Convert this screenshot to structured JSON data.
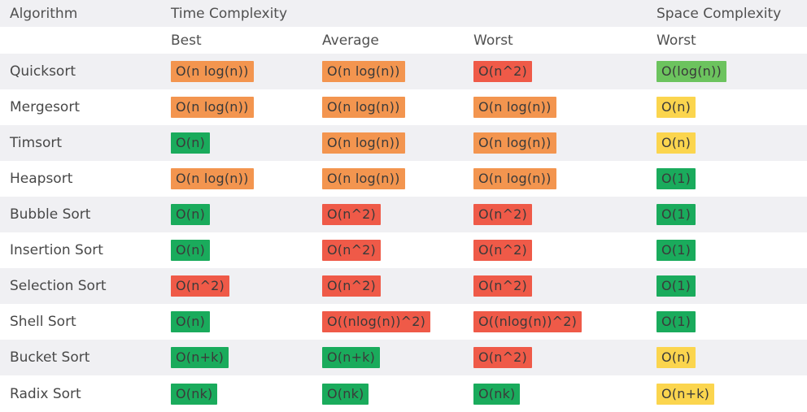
{
  "colors": {
    "green": "#1aab5c",
    "light_green": "#6cc35e",
    "orange": "#f3954f",
    "red": "#ef5a48",
    "yellow": "#fbd54e",
    "stripe": "#f0f0f3"
  },
  "header": {
    "algorithm": "Algorithm",
    "time_complexity": "Time Complexity",
    "space_complexity": "Space Complexity",
    "best": "Best",
    "average": "Average",
    "worst": "Worst",
    "space_worst": "Worst"
  },
  "rows": [
    {
      "name": "Quicksort",
      "best": {
        "text": "O(n log(n))",
        "color": "orange"
      },
      "average": {
        "text": "O(n log(n))",
        "color": "orange"
      },
      "worst": {
        "text": "O(n^2)",
        "color": "red"
      },
      "space": {
        "text": "O(log(n))",
        "color": "light_green"
      }
    },
    {
      "name": "Mergesort",
      "best": {
        "text": "O(n log(n))",
        "color": "orange"
      },
      "average": {
        "text": "O(n log(n))",
        "color": "orange"
      },
      "worst": {
        "text": "O(n log(n))",
        "color": "orange"
      },
      "space": {
        "text": "O(n)",
        "color": "yellow"
      }
    },
    {
      "name": "Timsort",
      "best": {
        "text": "O(n)",
        "color": "green"
      },
      "average": {
        "text": "O(n log(n))",
        "color": "orange"
      },
      "worst": {
        "text": "O(n log(n))",
        "color": "orange"
      },
      "space": {
        "text": "O(n)",
        "color": "yellow"
      }
    },
    {
      "name": "Heapsort",
      "best": {
        "text": "O(n log(n))",
        "color": "orange"
      },
      "average": {
        "text": "O(n log(n))",
        "color": "orange"
      },
      "worst": {
        "text": "O(n log(n))",
        "color": "orange"
      },
      "space": {
        "text": "O(1)",
        "color": "green"
      }
    },
    {
      "name": "Bubble Sort",
      "best": {
        "text": "O(n)",
        "color": "green"
      },
      "average": {
        "text": "O(n^2)",
        "color": "red"
      },
      "worst": {
        "text": "O(n^2)",
        "color": "red"
      },
      "space": {
        "text": "O(1)",
        "color": "green"
      }
    },
    {
      "name": "Insertion Sort",
      "best": {
        "text": "O(n)",
        "color": "green"
      },
      "average": {
        "text": "O(n^2)",
        "color": "red"
      },
      "worst": {
        "text": "O(n^2)",
        "color": "red"
      },
      "space": {
        "text": "O(1)",
        "color": "green"
      }
    },
    {
      "name": "Selection Sort",
      "best": {
        "text": "O(n^2)",
        "color": "red"
      },
      "average": {
        "text": "O(n^2)",
        "color": "red"
      },
      "worst": {
        "text": "O(n^2)",
        "color": "red"
      },
      "space": {
        "text": "O(1)",
        "color": "green"
      }
    },
    {
      "name": "Shell Sort",
      "best": {
        "text": "O(n)",
        "color": "green"
      },
      "average": {
        "text": "O((nlog(n))^2)",
        "color": "red"
      },
      "worst": {
        "text": "O((nlog(n))^2)",
        "color": "red"
      },
      "space": {
        "text": "O(1)",
        "color": "green"
      }
    },
    {
      "name": "Bucket Sort",
      "best": {
        "text": "O(n+k)",
        "color": "green"
      },
      "average": {
        "text": "O(n+k)",
        "color": "green"
      },
      "worst": {
        "text": "O(n^2)",
        "color": "red"
      },
      "space": {
        "text": "O(n)",
        "color": "yellow"
      }
    },
    {
      "name": "Radix Sort",
      "best": {
        "text": "O(nk)",
        "color": "green"
      },
      "average": {
        "text": "O(nk)",
        "color": "green"
      },
      "worst": {
        "text": "O(nk)",
        "color": "green"
      },
      "space": {
        "text": "O(n+k)",
        "color": "yellow"
      }
    }
  ]
}
